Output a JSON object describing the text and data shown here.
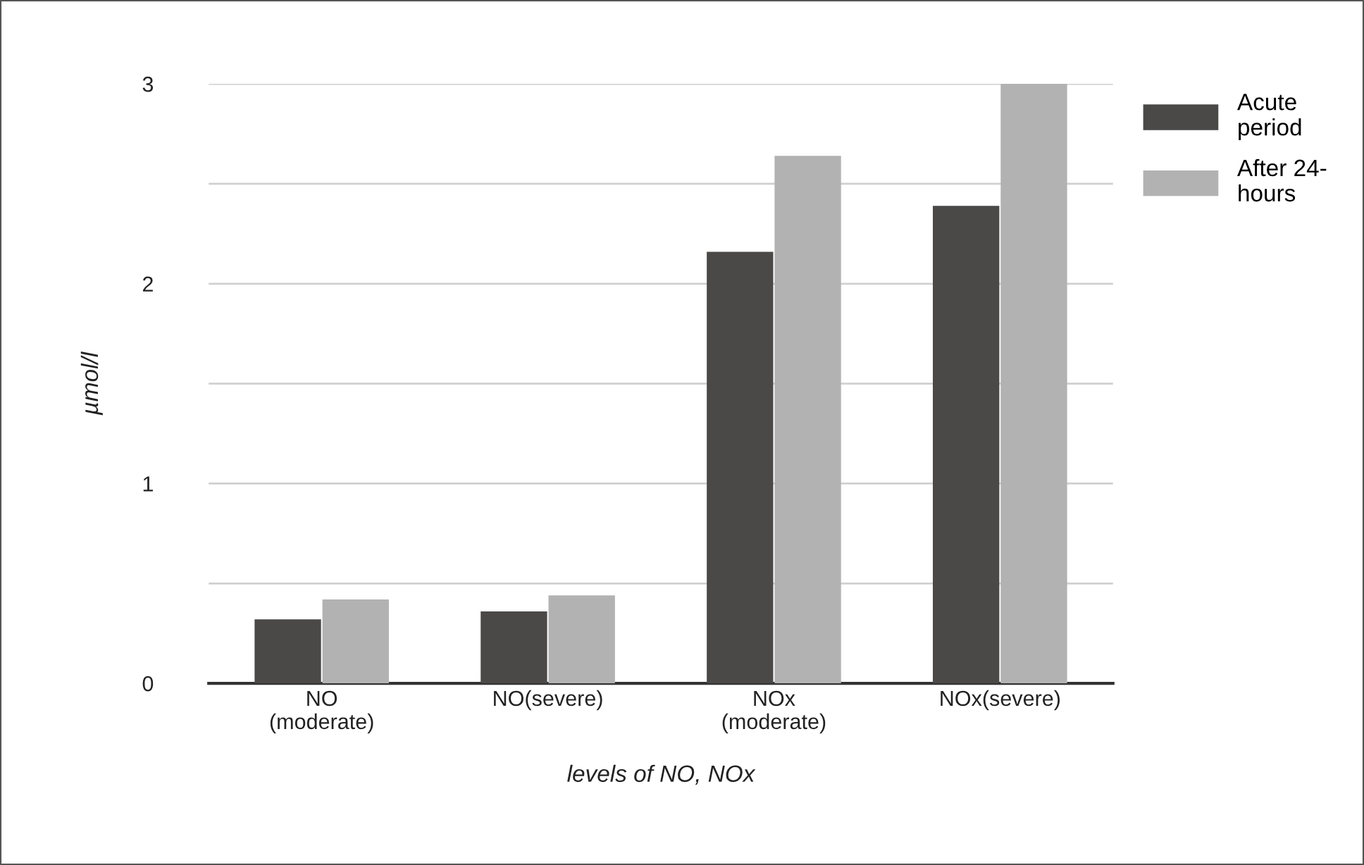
{
  "chart_data": {
    "type": "bar",
    "xlabel": "levels of NO, NOx",
    "ylabel": "µmol/l",
    "categories": [
      "NO\n(moderate)",
      "NO(severe)",
      "NOx\n(moderate)",
      "NOx(severe)"
    ],
    "series": [
      {
        "name": "Acute\nperiod",
        "color": "#4a4948",
        "values": [
          0.32,
          0.36,
          2.16,
          2.39
        ]
      },
      {
        "name": "After 24-\nhours",
        "color": "#b2b2b2",
        "values": [
          0.42,
          0.44,
          2.64,
          3.0
        ]
      }
    ],
    "ylim": [
      0,
      3
    ],
    "yticks": [
      0,
      {
        "value": 0.5,
        "label": null
      },
      1,
      {
        "value": 1.5,
        "label": null
      },
      2,
      {
        "value": 2.5,
        "label": null
      },
      3
    ],
    "grid": "y",
    "legend": "top right"
  }
}
